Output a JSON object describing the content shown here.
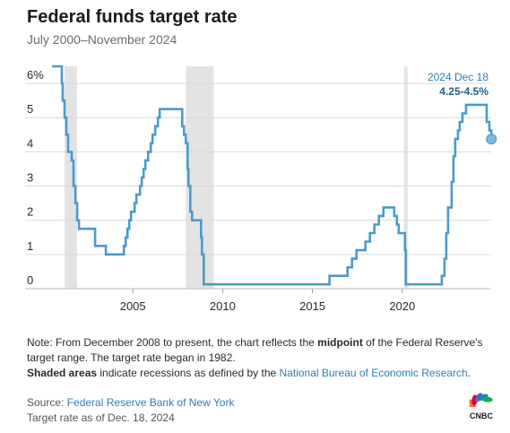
{
  "title": "Federal funds target rate",
  "subtitle": "July 2000–November 2024",
  "annotation": {
    "date": "2024 Dec 18",
    "value": "4.25-4.5%"
  },
  "notes": {
    "n1_pre": "Note: From December 2008 to present, the chart reflects the ",
    "n1_bold": "midpoint",
    "n1_post": " of the Federal Reserve's target range. The target rate began in 1982.",
    "n2_bold": "Shaded areas",
    "n2_mid": " indicate recessions as defined by the ",
    "n2_link": "National Bureau of Economic Research",
    "n2_end": ".",
    "source_label": "Source: ",
    "source_link": "Federal Reserve Bank of New York",
    "asof": "Target rate as of Dec. 18, 2024"
  },
  "logo": {
    "text": "CNBC",
    "icon": "nbc-peacock-icon"
  },
  "colors": {
    "line": "#4a9bcb",
    "shade": "#e3e3e3",
    "grid": "#d9d9d9",
    "dot": "#7fb8dc"
  },
  "chart_data": {
    "type": "line",
    "xlim": [
      2000.5,
      2025.0
    ],
    "ylim": [
      0,
      6.5
    ],
    "y_ticks": [
      0,
      1,
      2,
      3,
      4,
      5,
      6
    ],
    "y_tick_labels": [
      "0",
      "1",
      "2",
      "3",
      "4",
      "5",
      "6%"
    ],
    "x_ticks": [
      2005,
      2010,
      2015,
      2020
    ],
    "x_tick_labels": [
      "2005",
      "2010",
      "2015",
      "2020"
    ],
    "grid": true,
    "recessions": [
      [
        2001.2,
        2001.9
      ],
      [
        2007.95,
        2009.5
      ],
      [
        2020.1,
        2020.3
      ]
    ],
    "series": [
      {
        "points": [
          [
            2000.5,
            6.5
          ],
          [
            2001.0,
            6.5
          ],
          [
            2001.05,
            6.0
          ],
          [
            2001.1,
            5.5
          ],
          [
            2001.2,
            5.0
          ],
          [
            2001.3,
            4.5
          ],
          [
            2001.4,
            4.0
          ],
          [
            2001.6,
            3.75
          ],
          [
            2001.7,
            3.0
          ],
          [
            2001.8,
            2.5
          ],
          [
            2001.9,
            2.0
          ],
          [
            2002.0,
            1.75
          ],
          [
            2002.9,
            1.25
          ],
          [
            2003.5,
            1.0
          ],
          [
            2004.5,
            1.25
          ],
          [
            2004.6,
            1.5
          ],
          [
            2004.7,
            1.75
          ],
          [
            2004.8,
            2.0
          ],
          [
            2004.9,
            2.25
          ],
          [
            2005.1,
            2.5
          ],
          [
            2005.2,
            2.75
          ],
          [
            2005.4,
            3.0
          ],
          [
            2005.5,
            3.25
          ],
          [
            2005.6,
            3.5
          ],
          [
            2005.7,
            3.75
          ],
          [
            2005.85,
            4.0
          ],
          [
            2006.0,
            4.25
          ],
          [
            2006.1,
            4.5
          ],
          [
            2006.25,
            4.75
          ],
          [
            2006.4,
            5.0
          ],
          [
            2006.5,
            5.25
          ],
          [
            2007.7,
            5.25
          ],
          [
            2007.75,
            4.75
          ],
          [
            2007.85,
            4.5
          ],
          [
            2007.95,
            4.25
          ],
          [
            2008.05,
            3.5
          ],
          [
            2008.1,
            3.0
          ],
          [
            2008.2,
            2.25
          ],
          [
            2008.3,
            2.0
          ],
          [
            2008.8,
            1.5
          ],
          [
            2008.85,
            1.0
          ],
          [
            2008.95,
            0.125
          ],
          [
            2015.95,
            0.375
          ],
          [
            2016.95,
            0.625
          ],
          [
            2017.2,
            0.875
          ],
          [
            2017.45,
            1.125
          ],
          [
            2017.95,
            1.375
          ],
          [
            2018.2,
            1.625
          ],
          [
            2018.45,
            1.875
          ],
          [
            2018.7,
            2.125
          ],
          [
            2018.95,
            2.375
          ],
          [
            2019.55,
            2.125
          ],
          [
            2019.7,
            1.875
          ],
          [
            2019.8,
            1.625
          ],
          [
            2020.15,
            1.125
          ],
          [
            2020.2,
            0.125
          ],
          [
            2022.2,
            0.375
          ],
          [
            2022.35,
            0.875
          ],
          [
            2022.45,
            1.625
          ],
          [
            2022.55,
            2.375
          ],
          [
            2022.75,
            3.125
          ],
          [
            2022.85,
            3.875
          ],
          [
            2022.95,
            4.375
          ],
          [
            2023.1,
            4.625
          ],
          [
            2023.2,
            4.875
          ],
          [
            2023.35,
            5.125
          ],
          [
            2023.55,
            5.375
          ],
          [
            2024.7,
            4.875
          ],
          [
            2024.85,
            4.625
          ],
          [
            2024.96,
            4.375
          ]
        ]
      }
    ]
  }
}
